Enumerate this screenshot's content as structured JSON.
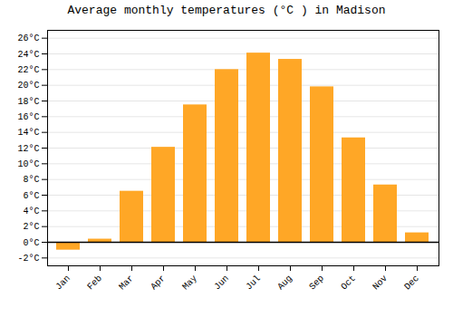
{
  "chart_data": {
    "type": "bar",
    "title": "Average monthly temperatures (°C ) in Madison",
    "categories": [
      "Jan",
      "Feb",
      "Mar",
      "Apr",
      "May",
      "Jun",
      "Jul",
      "Aug",
      "Sep",
      "Oct",
      "Nov",
      "Dec"
    ],
    "values": [
      -1.0,
      0.4,
      6.5,
      12.1,
      17.5,
      22.0,
      24.1,
      23.3,
      19.8,
      13.3,
      7.3,
      1.2
    ],
    "color": "#FFA726",
    "ylim": [
      -3,
      27
    ],
    "yticks": [
      {
        "value": -2,
        "label": "-2°C"
      },
      {
        "value": 0,
        "label": "0°C"
      },
      {
        "value": 2,
        "label": "2°C"
      },
      {
        "value": 4,
        "label": "4°C"
      },
      {
        "value": 6,
        "label": "6°C"
      },
      {
        "value": 8,
        "label": "8°C"
      },
      {
        "value": 10,
        "label": "10°C"
      },
      {
        "value": 12,
        "label": "12°C"
      },
      {
        "value": 14,
        "label": "14°C"
      },
      {
        "value": 16,
        "label": "16°C"
      },
      {
        "value": 18,
        "label": "18°C"
      },
      {
        "value": 20,
        "label": "20°C"
      },
      {
        "value": 22,
        "label": "22°C"
      },
      {
        "value": 24,
        "label": "24°C"
      },
      {
        "value": 26,
        "label": "26°C"
      }
    ],
    "grid": true
  }
}
